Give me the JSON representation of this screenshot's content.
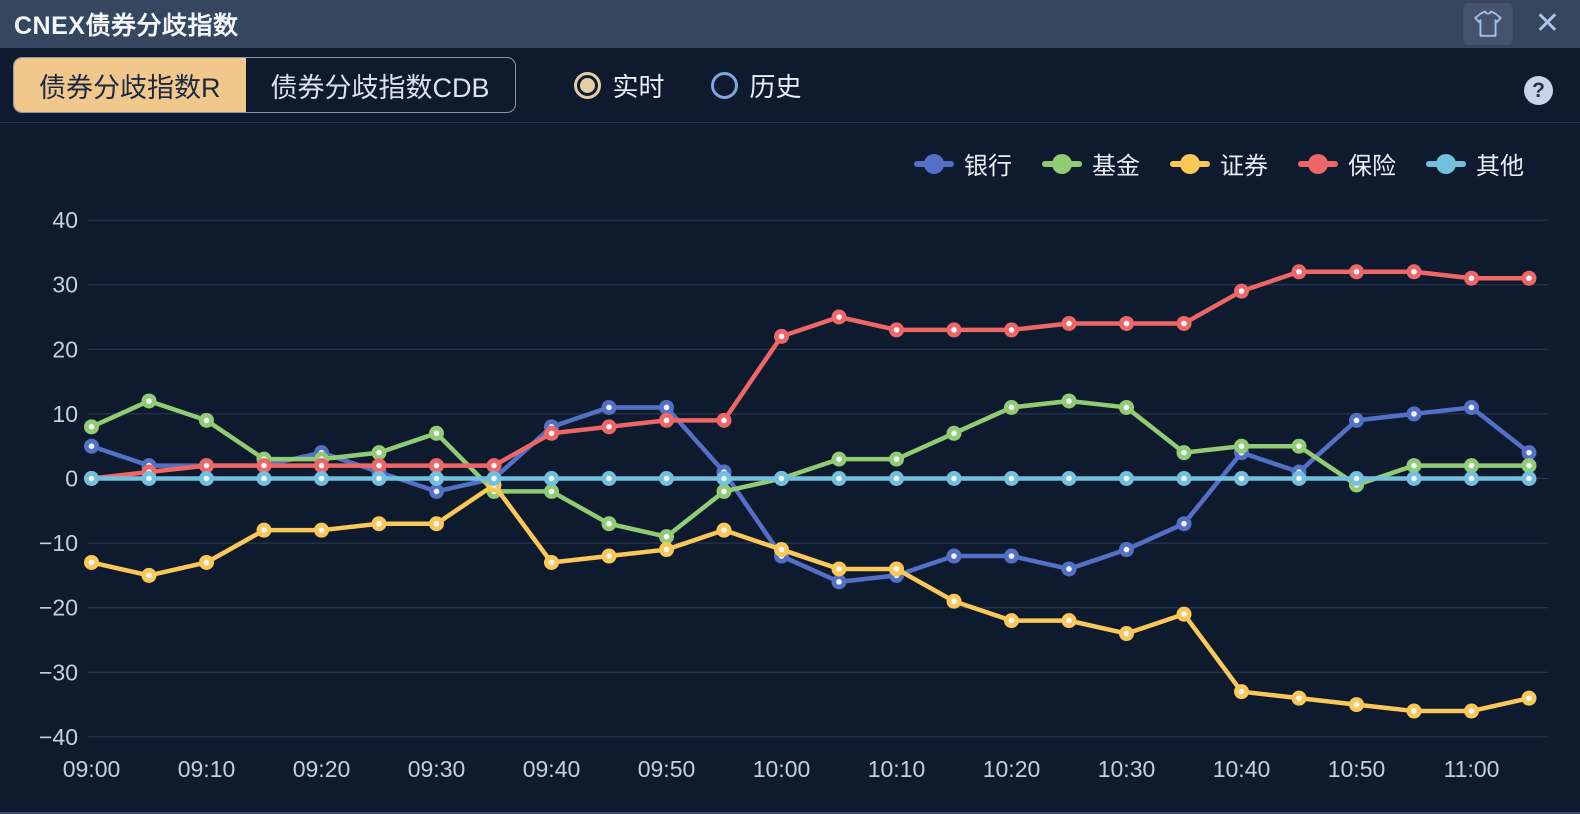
{
  "window": {
    "title": "CNEX债券分歧指数",
    "close_label": "✕"
  },
  "toolbar": {
    "tabs": [
      {
        "label": "债券分歧指数R",
        "selected": true
      },
      {
        "label": "债券分歧指数CDB",
        "selected": false
      }
    ],
    "radios": [
      {
        "label": "实时",
        "selected": true
      },
      {
        "label": "历史",
        "selected": false
      }
    ],
    "help_label": "?"
  },
  "colors": {
    "titlebar_bg": "#37465f",
    "window_bg": "#0e1b2f",
    "selected_tab_bg": "#f2c78c",
    "selected_radio": "#e6cda6",
    "unselected_radio": "#7fa6e0",
    "gridline": "#2c3a53",
    "axis_label": "#c3cfe3"
  },
  "chart_data": {
    "type": "line",
    "title": "",
    "x": [
      "09:00",
      "09:05",
      "09:10",
      "09:15",
      "09:20",
      "09:25",
      "09:30",
      "09:35",
      "09:40",
      "09:45",
      "09:50",
      "09:55",
      "10:00",
      "10:05",
      "10:10",
      "10:15",
      "10:20",
      "10:25",
      "10:30",
      "10:35",
      "10:40",
      "10:45",
      "10:50",
      "10:55",
      "11:00",
      "11:05"
    ],
    "x_label_every": 2,
    "y_ticks": [
      40,
      30,
      20,
      10,
      0,
      -10,
      -20,
      -30,
      -40
    ],
    "ylim": [
      -40,
      40
    ],
    "grid": true,
    "legend_position": "top-right",
    "series": [
      {
        "id": "bank",
        "name": "银行",
        "color": "#5470c6",
        "values": [
          5,
          2,
          2,
          2,
          4,
          1,
          -2,
          0,
          8,
          11,
          11,
          1,
          -12,
          -16,
          -15,
          -12,
          -12,
          -14,
          -11,
          -7,
          4,
          1,
          9,
          10,
          11,
          4
        ]
      },
      {
        "id": "fund",
        "name": "基金",
        "color": "#91cc75",
        "values": [
          8,
          12,
          9,
          3,
          3,
          4,
          7,
          -2,
          -2,
          -7,
          -9,
          -2,
          0,
          3,
          3,
          7,
          11,
          12,
          11,
          4,
          5,
          5,
          -1,
          2,
          2,
          2
        ]
      },
      {
        "id": "securities",
        "name": "证券",
        "color": "#fac858",
        "values": [
          -13,
          -15,
          -13,
          -8,
          -8,
          -7,
          -7,
          -1,
          -13,
          -12,
          -11,
          -8,
          -11,
          -14,
          -14,
          -19,
          -22,
          -22,
          -24,
          -21,
          -33,
          -34,
          -35,
          -36,
          -36,
          -34
        ]
      },
      {
        "id": "insurance",
        "name": "保险",
        "color": "#ee6666",
        "values": [
          0,
          1,
          2,
          2,
          2,
          2,
          2,
          2,
          7,
          8,
          9,
          9,
          22,
          25,
          23,
          23,
          23,
          24,
          24,
          24,
          29,
          32,
          32,
          32,
          31,
          31
        ]
      },
      {
        "id": "other",
        "name": "其他",
        "color": "#73c0de",
        "values": [
          0,
          0,
          0,
          0,
          0,
          0,
          0,
          0,
          0,
          0,
          0,
          0,
          0,
          0,
          0,
          0,
          0,
          0,
          0,
          0,
          0,
          0,
          0,
          0,
          0,
          0
        ]
      }
    ]
  }
}
